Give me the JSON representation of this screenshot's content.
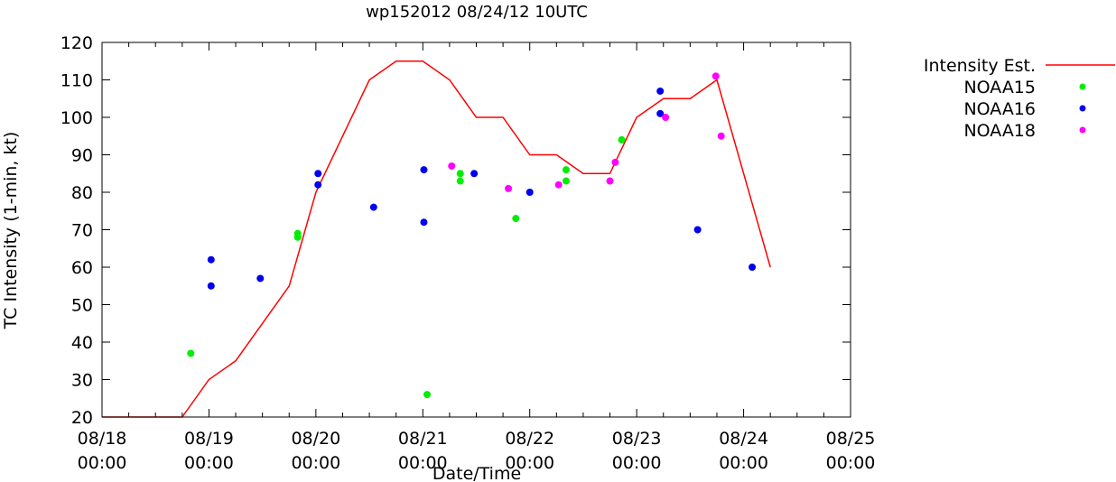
{
  "chart_data": {
    "type": "scatter",
    "title": "wp152012 08/24/12 10UTC",
    "xlabel": "Date/Time",
    "ylabel": "TC Intensity (1-min, kt)",
    "xlim_days": [
      0,
      7
    ],
    "ylim": [
      20,
      120
    ],
    "x_ticks": [
      {
        "day": 0,
        "line1": "08/18",
        "line2": "00:00"
      },
      {
        "day": 1,
        "line1": "08/19",
        "line2": "00:00"
      },
      {
        "day": 2,
        "line1": "08/20",
        "line2": "00:00"
      },
      {
        "day": 3,
        "line1": "08/21",
        "line2": "00:00"
      },
      {
        "day": 4,
        "line1": "08/22",
        "line2": "00:00"
      },
      {
        "day": 5,
        "line1": "08/23",
        "line2": "00:00"
      },
      {
        "day": 6,
        "line1": "08/24",
        "line2": "00:00"
      },
      {
        "day": 7,
        "line1": "08/25",
        "line2": "00:00"
      }
    ],
    "y_ticks": [
      20,
      30,
      40,
      50,
      60,
      70,
      80,
      90,
      100,
      110,
      120
    ],
    "legend_position": "top-right-outside",
    "series": [
      {
        "name": "Intensity Est.",
        "kind": "line",
        "color": "#ff0000",
        "x": [
          0,
          0.75,
          1.0,
          1.25,
          1.75,
          2.0,
          2.5,
          2.75,
          3.0,
          3.25,
          3.5,
          3.75,
          4.0,
          4.25,
          4.5,
          4.75,
          5.0,
          5.25,
          5.5,
          5.75,
          6.25
        ],
        "y": [
          20,
          20,
          30,
          35,
          55,
          80,
          110,
          115,
          115,
          110,
          100,
          100,
          90,
          90,
          85,
          85,
          100,
          105,
          105,
          110,
          60
        ]
      },
      {
        "name": "NOAA15",
        "kind": "points",
        "color": "#00ee00",
        "x": [
          0.83,
          1.83,
          1.83,
          3.04,
          3.35,
          3.35,
          3.87,
          4.34,
          4.34,
          4.86
        ],
        "y": [
          37,
          69,
          68,
          26,
          85,
          83,
          73,
          86,
          83,
          94
        ]
      },
      {
        "name": "NOAA16",
        "kind": "points",
        "color": "#0000ee",
        "x": [
          1.02,
          1.02,
          1.48,
          2.02,
          2.02,
          2.54,
          3.01,
          3.01,
          3.48,
          4.0,
          5.22,
          5.22,
          5.57,
          6.08
        ],
        "y": [
          62,
          55,
          57,
          85,
          82,
          76,
          86,
          72,
          85,
          80,
          107,
          101,
          70,
          60
        ]
      },
      {
        "name": "NOAA18",
        "kind": "points",
        "color": "#ff00ff",
        "x": [
          3.27,
          3.8,
          4.27,
          4.75,
          4.8,
          5.27,
          5.74,
          5.79
        ],
        "y": [
          87,
          81,
          82,
          83,
          88,
          100,
          111,
          95
        ]
      }
    ]
  }
}
